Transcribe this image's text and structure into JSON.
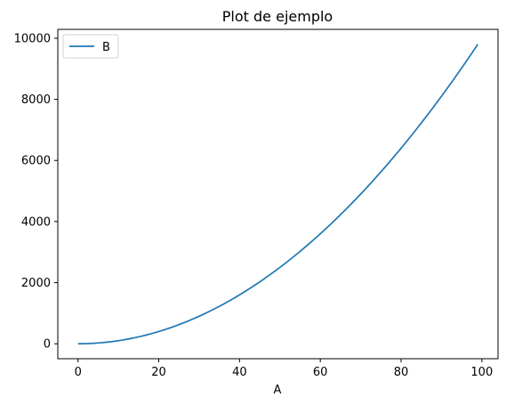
{
  "chart_data": {
    "type": "line",
    "title": "Plot de ejemplo",
    "xlabel": "A",
    "ylabel": "",
    "xlim": [
      -5,
      104
    ],
    "ylim": [
      -490,
      10290
    ],
    "x_ticks": [
      0,
      20,
      40,
      60,
      80,
      100
    ],
    "y_ticks": [
      0,
      2000,
      4000,
      6000,
      8000,
      10000
    ],
    "grid": false,
    "legend": {
      "position": "top-left",
      "entries": [
        "B"
      ]
    },
    "series": [
      {
        "name": "B",
        "color": "#1f77b4",
        "x_range": [
          0,
          99
        ],
        "x_step": 1,
        "formula": "y = x^2",
        "y_at_end": 9801
      }
    ]
  }
}
